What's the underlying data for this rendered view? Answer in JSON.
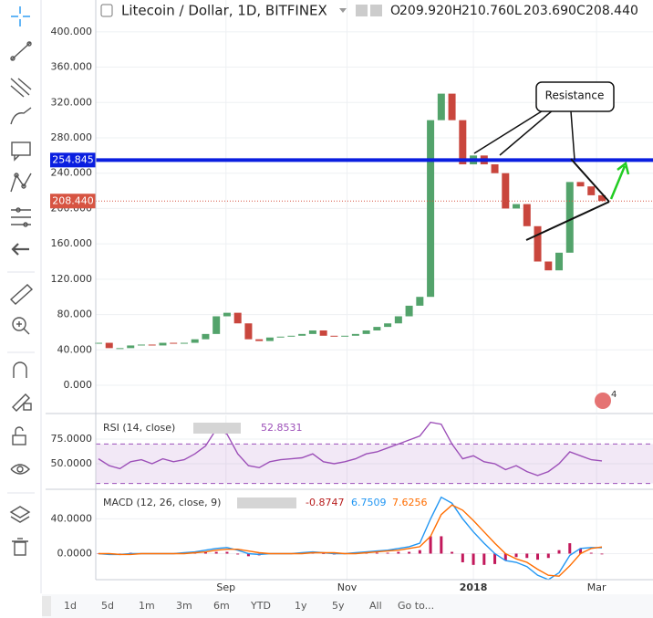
{
  "chart_data": [
    {
      "type": "candlestick",
      "title": "Litecoin / Dollar, 1D, BITFINEX",
      "quote": [
        {
          "key": "O",
          "text": "209.920"
        },
        {
          "key": "H",
          "text": "210.760"
        },
        {
          "key": "L",
          "text": "203.690"
        },
        {
          "key": "C",
          "text": "208.440"
        }
      ],
      "categories": [
        null,
        null,
        null,
        null,
        null,
        null,
        null,
        null,
        null,
        null,
        null,
        null,
        null,
        null,
        null,
        null,
        null,
        null,
        null,
        null,
        null,
        null,
        null,
        null,
        null,
        null,
        null,
        null,
        null,
        null,
        null,
        null,
        null,
        null,
        null,
        null,
        null,
        null,
        null,
        null,
        null,
        null,
        null,
        null,
        null,
        null,
        null,
        null
      ],
      "values": [
        48,
        42,
        42,
        45,
        46,
        45,
        48,
        47,
        48,
        52,
        58,
        78,
        82,
        70,
        52,
        50,
        54,
        55,
        56,
        58,
        62,
        56,
        55,
        56,
        58,
        62,
        66,
        70,
        78,
        90,
        100,
        300,
        330,
        300,
        250,
        260,
        250,
        240,
        200,
        205,
        180,
        140,
        130,
        150,
        230,
        225,
        215,
        208.44
      ],
      "up_color": "#53a36b",
      "down_color": "#c9463d",
      "ylim": [
        -31,
        436
      ],
      "yticks": [
        {
          "value": 0,
          "label": "0.000"
        },
        {
          "value": 40,
          "label": "40.000"
        },
        {
          "value": 80,
          "label": "80.000"
        },
        {
          "value": 120,
          "label": "120.000"
        },
        {
          "value": 160,
          "label": "160.000"
        },
        {
          "value": 200,
          "label": "200.000"
        },
        {
          "value": 240,
          "label": "240.000"
        },
        {
          "value": 280,
          "label": "280.000"
        },
        {
          "value": 320,
          "label": "320.000"
        },
        {
          "value": 360,
          "label": "360.000"
        },
        {
          "value": 400,
          "label": "400.000"
        }
      ],
      "xticks": [
        {
          "value": 11.9,
          "label": "Sep"
        },
        {
          "value": 23.2,
          "label": "Nov"
        },
        {
          "value": 35,
          "label": "2018"
        },
        {
          "value": 46.5,
          "label": "Mar"
        }
      ],
      "hline": {
        "value": 254.845,
        "label": "254.845",
        "color": "#0a1ee0"
      },
      "last_price": {
        "value": 208.44,
        "label": "208.440",
        "color": "#d75442"
      },
      "annotation": "Resistance",
      "events": "4",
      "grid": true
    },
    {
      "type": "line",
      "title": "RSI (14, close)",
      "color": "#9c4fb8",
      "values": [
        55,
        48,
        45,
        52,
        54,
        50,
        55,
        52,
        54,
        60,
        68,
        85,
        80,
        60,
        48,
        46,
        52,
        54,
        55,
        56,
        60,
        52,
        50,
        52,
        55,
        60,
        62,
        66,
        70,
        74,
        78,
        92,
        90,
        70,
        55,
        58,
        52,
        50,
        44,
        48,
        42,
        38,
        42,
        50,
        62,
        58,
        54,
        52.8531
      ],
      "band": [
        30,
        70
      ],
      "ylim": [
        25,
        99
      ],
      "yticks": [
        {
          "value": 50,
          "label": "50.0000"
        },
        {
          "value": 75,
          "label": "75.0000"
        }
      ],
      "grid": true
    },
    {
      "type": "macd",
      "title": "MACD (12, 26, close, 9)",
      "series": [
        {
          "kind": "histogram",
          "color": "#c2185b",
          "values": [
            0,
            -1,
            0,
            1,
            0,
            0,
            0,
            0,
            1,
            1,
            2,
            2,
            2,
            -1,
            -3,
            -2,
            0,
            0,
            0,
            1,
            1,
            0,
            -1,
            0,
            1,
            1,
            1,
            1,
            2,
            2,
            4,
            20,
            20,
            2,
            -10,
            -13,
            -13,
            -12,
            -8,
            -4,
            -5,
            -7,
            -5,
            4,
            12,
            6,
            1,
            -0.8747
          ]
        },
        {
          "kind": "line",
          "color": "#2196f3",
          "values": [
            0,
            -1,
            -1,
            0,
            0,
            0,
            0,
            0,
            1,
            2,
            4,
            6,
            7,
            4,
            0,
            -1,
            0,
            0,
            0,
            1,
            2,
            1,
            0,
            0,
            1,
            2,
            3,
            4,
            6,
            8,
            12,
            40,
            65,
            58,
            40,
            25,
            12,
            0,
            -8,
            -10,
            -15,
            -25,
            -30,
            -22,
            -2,
            6,
            7,
            6.7509
          ]
        },
        {
          "kind": "line",
          "color": "#ff6d00",
          "values": [
            0,
            0,
            -1,
            -1,
            0,
            0,
            0,
            0,
            0,
            1,
            2,
            4,
            5,
            5,
            3,
            1,
            0,
            0,
            0,
            0,
            1,
            1,
            1,
            0,
            0,
            1,
            2,
            3,
            4,
            6,
            8,
            20,
            45,
            56,
            50,
            38,
            25,
            12,
            0,
            -6,
            -10,
            -18,
            -25,
            -26,
            -14,
            0,
            6,
            7.6256
          ]
        }
      ],
      "ylim": [
        -30,
        72
      ],
      "yticks": [
        {
          "value": 0,
          "label": "0.0000"
        },
        {
          "value": 40,
          "label": "40.0000"
        }
      ],
      "grid": true
    }
  ],
  "range_buttons": [
    "1d",
    "5d",
    "1m",
    "3m",
    "6m",
    "YTD",
    "1y",
    "5y",
    "All"
  ],
  "goto": "Go to..."
}
